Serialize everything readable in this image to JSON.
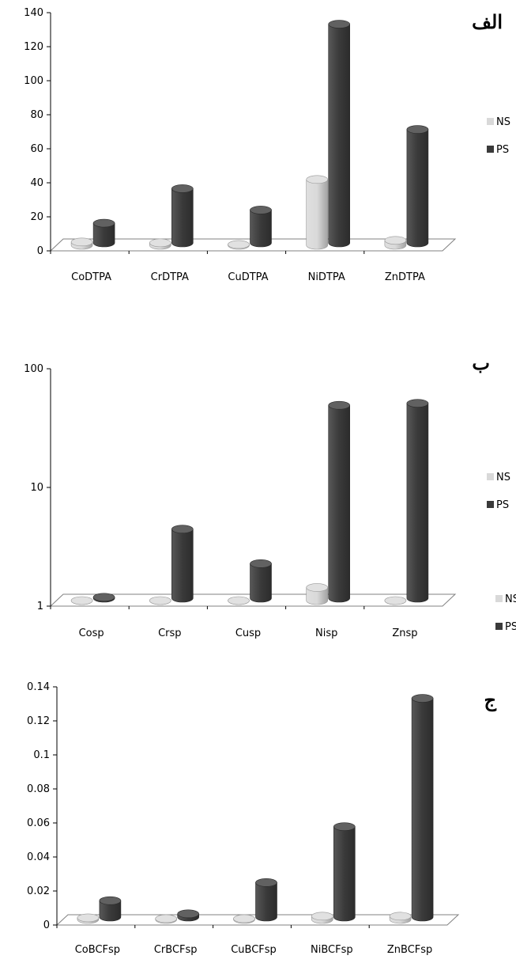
{
  "colors": {
    "NS": "#d9d9d9",
    "PS": "#3a3a3a",
    "axis": "#000000",
    "floor": "#808080"
  },
  "chart_data": [
    {
      "type": "bar",
      "title": "الف",
      "scale": "linear",
      "ylim": [
        0,
        140
      ],
      "yticks": [
        "0",
        "20",
        "40",
        "60",
        "80",
        "100",
        "120",
        "140"
      ],
      "categories": [
        "CoDTPA",
        "CrDTPA",
        "CuDTPA",
        "NiDTPA",
        "ZnDTPA"
      ],
      "series": [
        {
          "name": "NS",
          "values": [
            2,
            1.5,
            0.5,
            40,
            3
          ]
        },
        {
          "name": "PS",
          "values": [
            12,
            33,
            20,
            133,
            69
          ]
        }
      ],
      "legend": "right"
    },
    {
      "type": "bar",
      "title": "ب",
      "scale": "log",
      "ylim": [
        1,
        100
      ],
      "yticks": [
        "1",
        "10",
        "100"
      ],
      "categories": [
        "Cosp",
        "Crsp",
        "Cusp",
        "Nisp",
        "Znsp"
      ],
      "series": [
        {
          "name": "NS",
          "values": [
            1,
            1,
            1,
            1.3,
            1
          ]
        },
        {
          "name": "PS",
          "values": [
            1.02,
            4,
            2,
            48,
            50
          ]
        }
      ],
      "legend": "right"
    },
    {
      "type": "bar",
      "title": "ج",
      "scale": "linear",
      "ylim": [
        0,
        0.14
      ],
      "yticks": [
        "0",
        "0.02",
        "0.04",
        "0.06",
        "0.08",
        "0.1",
        "0.12",
        "0.14"
      ],
      "categories": [
        "CoBCFsp",
        "CrBCFsp",
        "CuBCFsp",
        "NiBCFsp",
        "ZnBCFsp"
      ],
      "series": [
        {
          "name": "NS",
          "values": [
            0.001,
            0.0005,
            0.0005,
            0.002,
            0.002
          ]
        },
        {
          "name": "PS",
          "values": [
            0.01,
            0.002,
            0.021,
            0.055,
            0.133
          ]
        }
      ],
      "legend": "right"
    }
  ]
}
